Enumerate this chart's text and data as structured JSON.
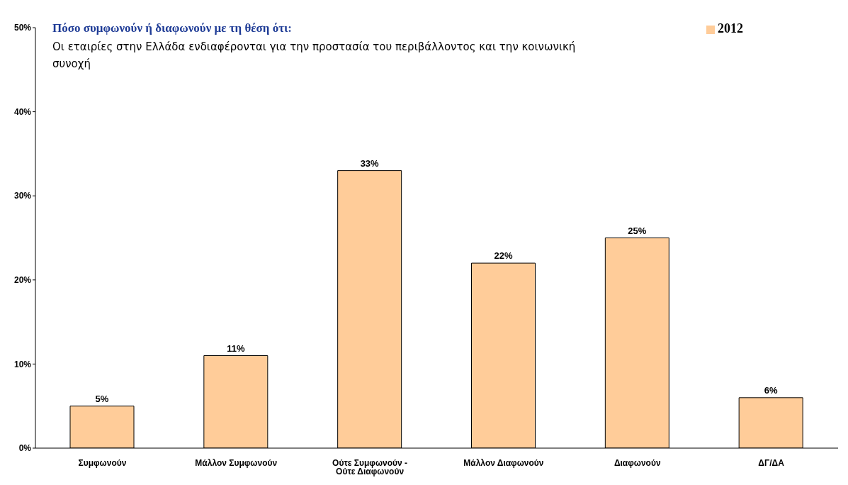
{
  "chart_data": {
    "type": "bar",
    "title": "Πόσο συμφωνούν ή διαφωνούν με τη θέση ότι:",
    "subtitle": "Οι εταιρίες στην Ελλάδα ενδιαφέρονται για την προστασία του περιβάλλοντος και την κοινωνική συνοχή",
    "categories": [
      "Συμφωνούν",
      "Μάλλον Συμφωνούν",
      "Ούτε Συμφωνούν - Ούτε Διαφωνούν",
      "Μάλλον Διαφωνούν",
      "Διαφωνούν",
      "ΔΓ/ΔΑ"
    ],
    "series": [
      {
        "name": "2012",
        "color": "#ffcc99",
        "values": [
          5,
          11,
          33,
          22,
          25,
          6
        ],
        "value_labels": [
          "5%",
          "11%",
          "33%",
          "22%",
          "25%",
          "6%"
        ]
      }
    ],
    "ylim": [
      0,
      50
    ],
    "yticks": [
      {
        "value": 0,
        "label": "0%"
      },
      {
        "value": 10,
        "label": "10%"
      },
      {
        "value": 20,
        "label": "20%"
      },
      {
        "value": 30,
        "label": "30%"
      },
      {
        "value": 40,
        "label": "40%"
      },
      {
        "value": 50,
        "label": "50%"
      }
    ],
    "legend": "top right"
  }
}
